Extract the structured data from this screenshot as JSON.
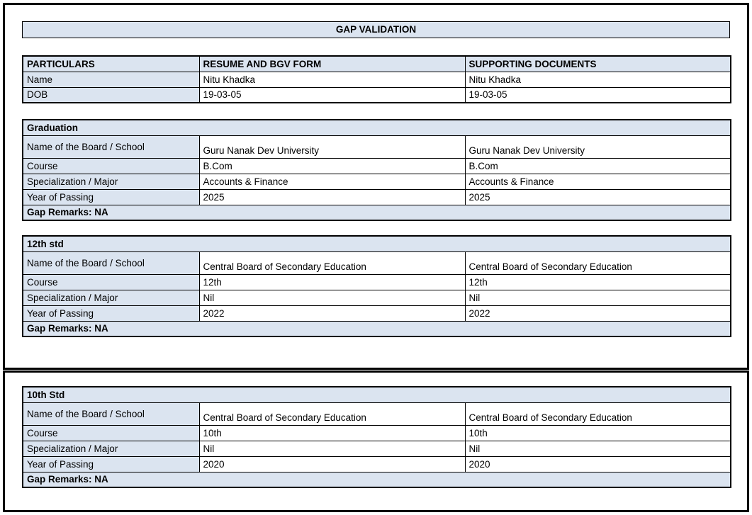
{
  "title": "GAP VALIDATION",
  "colors": {
    "fill": "#dbe4f0",
    "border": "#000000"
  },
  "summary_table": {
    "headers": [
      "PARTICULARS",
      "RESUME AND BGV FORM",
      "SUPPORTING DOCUMENTS"
    ],
    "rows": [
      {
        "label": "Name",
        "resume": "Nitu Khadka",
        "supporting": "Nitu Khadka"
      },
      {
        "label": "DOB",
        "resume": "19-03-05",
        "supporting": "19-03-05"
      }
    ]
  },
  "sections": [
    {
      "title": "Graduation",
      "page": 1,
      "rows": [
        {
          "label": "Name of the Board / School",
          "resume": "Guru Nanak Dev University",
          "supporting": "Guru Nanak Dev University",
          "tall": true
        },
        {
          "label": "Course",
          "resume": "B.Com",
          "supporting": "B.Com"
        },
        {
          "label": "Specialization / Major",
          "resume": "Accounts & Finance",
          "supporting": "Accounts & Finance"
        },
        {
          "label": "Year of Passing",
          "resume": "2025",
          "supporting": "2025"
        }
      ],
      "gap_remarks": "Gap Remarks: NA"
    },
    {
      "title": "12th std",
      "page": 1,
      "rows": [
        {
          "label": "Name of the Board / School",
          "resume": "Central Board of Secondary Education",
          "supporting": "Central Board of Secondary Education",
          "tall": true
        },
        {
          "label": "Course",
          "resume": "12th",
          "supporting": "12th"
        },
        {
          "label": "Specialization / Major",
          "resume": "Nil",
          "supporting": "Nil"
        },
        {
          "label": "Year of Passing",
          "resume": "2022",
          "supporting": "2022"
        }
      ],
      "gap_remarks": "Gap Remarks: NA"
    },
    {
      "title": "10th Std",
      "page": 2,
      "rows": [
        {
          "label": "Name of the Board / School",
          "resume": "Central Board of Secondary Education",
          "supporting": "Central Board of Secondary Education",
          "tall": true
        },
        {
          "label": "Course",
          "resume": "10th",
          "supporting": "10th"
        },
        {
          "label": "Specialization / Major",
          "resume": "Nil",
          "supporting": "Nil"
        },
        {
          "label": "Year of Passing",
          "resume": "2020",
          "supporting": "2020"
        }
      ],
      "gap_remarks": "Gap Remarks: NA"
    }
  ]
}
